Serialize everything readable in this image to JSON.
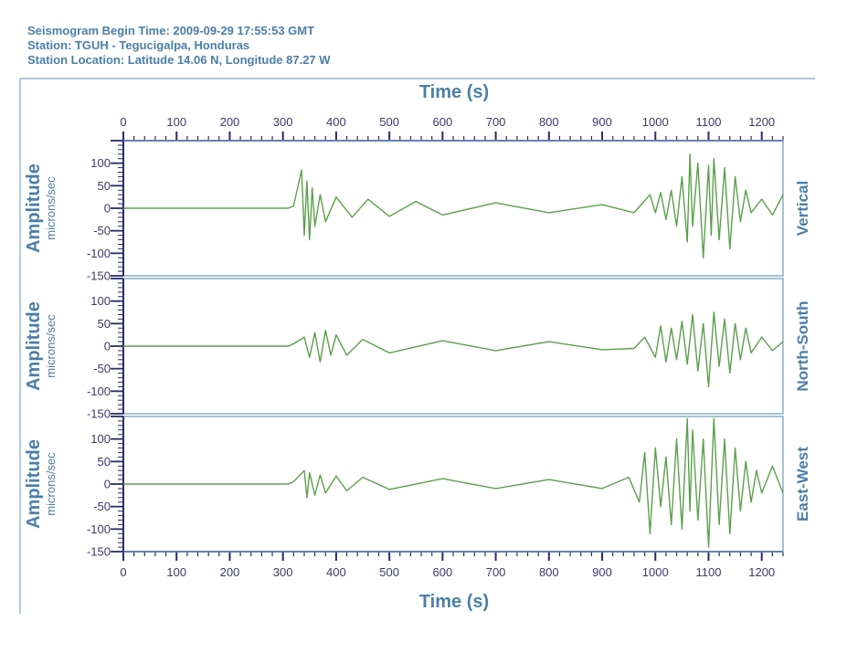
{
  "header": {
    "line1": "Seismogram Begin Time: 2009-09-29 17:55:53 GMT",
    "line2": "Station: TGUH - Tegucigalpa, Honduras",
    "line3": "Station Location: Latitude 14.06 N, Longitude 87.27 W"
  },
  "colors": {
    "trace": "#5aa04a",
    "frame": "#7fa8c8",
    "axis": "#2a2a6a",
    "label": "#4a7fa8"
  },
  "chart_data": {
    "type": "line",
    "xlabel": "Time (s)",
    "xlim": [
      0,
      1240
    ],
    "x_ticks": [
      0,
      100,
      200,
      300,
      400,
      500,
      600,
      700,
      800,
      900,
      1000,
      1100,
      1200
    ],
    "x_tick_labels": [
      "0",
      "100",
      "200",
      "300",
      "400",
      "500",
      "600",
      "700",
      "800",
      "900",
      "1000",
      "1100",
      "1200"
    ],
    "ylabel": "Amplitude",
    "yunit": "microns/sec",
    "ylim": [
      -150,
      150
    ],
    "y_ticks": [
      -150,
      -100,
      -50,
      0,
      50,
      100
    ],
    "y_tick_labels": [
      "-150",
      "-100",
      "-50",
      "0",
      "50",
      "100"
    ],
    "grid": false,
    "panels": [
      {
        "name": "Vertical",
        "x": [
          0,
          310,
          320,
          335,
          340,
          345,
          350,
          355,
          360,
          370,
          380,
          400,
          430,
          460,
          500,
          550,
          600,
          700,
          800,
          900,
          960,
          990,
          1000,
          1010,
          1020,
          1030,
          1040,
          1050,
          1060,
          1065,
          1070,
          1080,
          1090,
          1100,
          1105,
          1110,
          1120,
          1130,
          1140,
          1150,
          1160,
          1170,
          1180,
          1200,
          1220,
          1240
        ],
        "y": [
          0,
          0,
          5,
          85,
          -60,
          60,
          -70,
          45,
          -40,
          30,
          -30,
          25,
          -20,
          20,
          -18,
          15,
          -15,
          12,
          -10,
          8,
          -10,
          30,
          -10,
          35,
          -25,
          40,
          -40,
          70,
          -75,
          120,
          -40,
          100,
          -110,
          95,
          -60,
          110,
          -70,
          90,
          -90,
          70,
          -30,
          40,
          -10,
          20,
          -15,
          30
        ]
      },
      {
        "name": "North-South",
        "x": [
          0,
          310,
          320,
          340,
          350,
          360,
          370,
          380,
          390,
          400,
          420,
          450,
          500,
          600,
          700,
          800,
          900,
          960,
          980,
          1000,
          1010,
          1020,
          1030,
          1040,
          1050,
          1060,
          1070,
          1080,
          1090,
          1100,
          1110,
          1120,
          1130,
          1140,
          1150,
          1160,
          1170,
          1180,
          1200,
          1220,
          1240
        ],
        "y": [
          0,
          0,
          5,
          20,
          -25,
          30,
          -35,
          35,
          -20,
          25,
          -20,
          15,
          -15,
          12,
          -10,
          10,
          -8,
          -5,
          20,
          -25,
          45,
          -35,
          40,
          -30,
          55,
          -40,
          70,
          -55,
          50,
          -90,
          75,
          -45,
          60,
          -60,
          50,
          -30,
          40,
          -15,
          20,
          -10,
          10
        ]
      },
      {
        "name": "East-West",
        "x": [
          0,
          310,
          320,
          340,
          345,
          350,
          360,
          370,
          380,
          400,
          420,
          450,
          500,
          600,
          700,
          800,
          900,
          950,
          970,
          980,
          990,
          1000,
          1010,
          1020,
          1030,
          1040,
          1050,
          1060,
          1065,
          1070,
          1080,
          1090,
          1100,
          1110,
          1120,
          1130,
          1140,
          1150,
          1160,
          1170,
          1180,
          1190,
          1200,
          1220,
          1240
        ],
        "y": [
          0,
          0,
          5,
          30,
          -30,
          25,
          -25,
          20,
          -20,
          18,
          -15,
          15,
          -12,
          12,
          -10,
          10,
          -10,
          15,
          -40,
          70,
          -110,
          80,
          -50,
          60,
          -90,
          100,
          -100,
          145,
          -60,
          120,
          -80,
          100,
          -140,
          145,
          -90,
          100,
          -110,
          80,
          -60,
          50,
          -40,
          30,
          -20,
          40,
          -20
        ]
      }
    ]
  }
}
